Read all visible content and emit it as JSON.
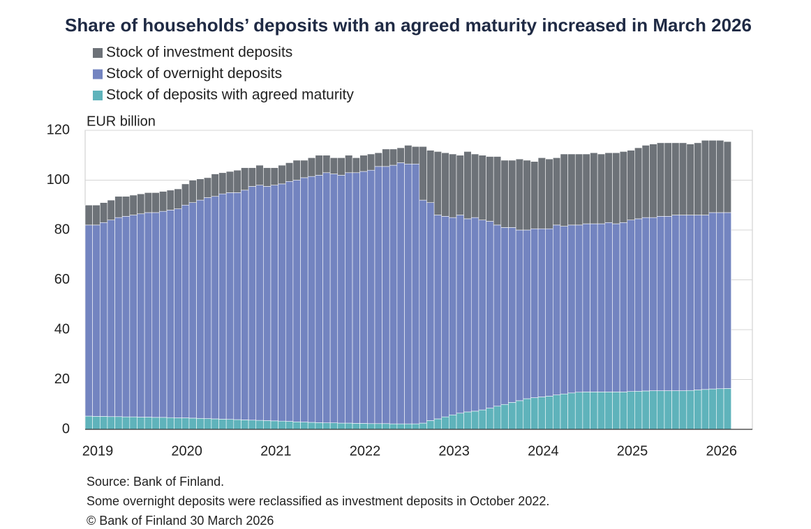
{
  "chart_data": {
    "type": "stacked_bar",
    "title": "Share of households’ deposits with an agreed maturity increased in March 2026",
    "y_label": "EUR billion",
    "categories": [
      null,
      "2019",
      null,
      null,
      null,
      null,
      null,
      null,
      null,
      null,
      null,
      null,
      null,
      "2020",
      null,
      null,
      null,
      null,
      null,
      null,
      null,
      null,
      null,
      null,
      null,
      "2021",
      null,
      null,
      null,
      null,
      null,
      null,
      null,
      null,
      null,
      null,
      null,
      "2022",
      null,
      null,
      null,
      null,
      null,
      null,
      null,
      null,
      null,
      null,
      null,
      "2023",
      null,
      null,
      null,
      null,
      null,
      null,
      null,
      null,
      null,
      null,
      null,
      "2024",
      null,
      null,
      null,
      null,
      null,
      null,
      null,
      null,
      null,
      null,
      null,
      "2025",
      null,
      null,
      null,
      null,
      null,
      null,
      null,
      null,
      null,
      null,
      null,
      "2026",
      null
    ],
    "series": [
      {
        "name": "Stock of investment deposits",
        "color": "#6d7278",
        "values": [
          8,
          8,
          8,
          8,
          8.5,
          8,
          8,
          8,
          8,
          8,
          8,
          8,
          8,
          8.5,
          9,
          8.5,
          8,
          9,
          8.5,
          8.5,
          9,
          9,
          7.5,
          8,
          7.5,
          7,
          7.5,
          7.5,
          8,
          7,
          7.5,
          8,
          7,
          6.5,
          7,
          7,
          6,
          6.5,
          6.5,
          5.5,
          7,
          6.5,
          6,
          7.5,
          7,
          21.5,
          21,
          25.5,
          25.5,
          25.5,
          24,
          27,
          25.5,
          26,
          26,
          27.5,
          27,
          27,
          28.5,
          28,
          27,
          28.5,
          28,
          27,
          29,
          28.5,
          28.5,
          28,
          28.5,
          28,
          28,
          28.5,
          28.5,
          28,
          28.5,
          29,
          29.5,
          29.5,
          29.5,
          29,
          29,
          28.5,
          29,
          30,
          29,
          29,
          28.5
        ]
      },
      {
        "name": "Stock of overnight deposits",
        "color": "#7384c0",
        "values": [
          76.7,
          76.8,
          77.8,
          78.9,
          79.9,
          80.5,
          81.0,
          81.6,
          82.1,
          82.2,
          82.7,
          83.3,
          83.9,
          85.4,
          86.5,
          87.6,
          88.7,
          89.3,
          90.4,
          91.0,
          91.1,
          92.2,
          93.8,
          94.4,
          94.0,
          94.6,
          95.2,
          96.3,
          97.0,
          98.1,
          98.7,
          99.3,
          100.4,
          99.9,
          99.5,
          100.5,
          100.6,
          101.1,
          101.7,
          103.2,
          103.2,
          103.8,
          104.8,
          104.3,
          104.3,
          89.5,
          87.5,
          81.8,
          80.5,
          79.2,
          79.5,
          77.5,
          77.7,
          76.2,
          75.0,
          72.7,
          71.0,
          70.2,
          68.5,
          67.7,
          67.8,
          67.5,
          67.2,
          68.2,
          67.3,
          67.4,
          67.1,
          67.5,
          67.5,
          67.5,
          68.0,
          67.5,
          68.0,
          68.8,
          69.2,
          69.6,
          69.5,
          70.0,
          70.0,
          70.5,
          70.5,
          70.4,
          70.2,
          70.0,
          70.8,
          70.7,
          70.6
        ]
      },
      {
        "name": "Stock of deposits with agreed maturity",
        "color": "#5fb3bb",
        "values": [
          5.3,
          5.2,
          5.2,
          5.1,
          5.1,
          5.0,
          5.0,
          4.9,
          4.9,
          4.8,
          4.8,
          4.7,
          4.6,
          4.6,
          4.5,
          4.4,
          4.3,
          4.2,
          4.1,
          4.0,
          3.9,
          3.8,
          3.7,
          3.6,
          3.5,
          3.4,
          3.3,
          3.2,
          3.0,
          2.9,
          2.8,
          2.7,
          2.6,
          2.6,
          2.5,
          2.5,
          2.4,
          2.4,
          2.3,
          2.3,
          2.3,
          2.2,
          2.2,
          2.2,
          2.2,
          2.5,
          3.5,
          4.2,
          5.0,
          5.8,
          6.5,
          7.0,
          7.3,
          7.8,
          8.5,
          9.3,
          10.0,
          10.8,
          11.5,
          12.3,
          12.7,
          13.0,
          13.3,
          13.8,
          14.2,
          14.6,
          14.9,
          15.0,
          15.0,
          15.0,
          15.0,
          15.0,
          15.0,
          15.2,
          15.3,
          15.4,
          15.5,
          15.5,
          15.5,
          15.5,
          15.5,
          15.6,
          15.8,
          16.0,
          16.2,
          16.3,
          16.4
        ]
      }
    ],
    "ylim": [
      0,
      120
    ],
    "yticks": [
      0,
      20,
      40,
      60,
      80,
      100,
      120
    ],
    "grid": true,
    "legend": "top-left",
    "notes": [
      "Source: Bank of Finland.",
      "Some overnight deposits were reclassified as investment deposits in October 2022.",
      "© Bank of Finland 30 March 2026"
    ]
  }
}
